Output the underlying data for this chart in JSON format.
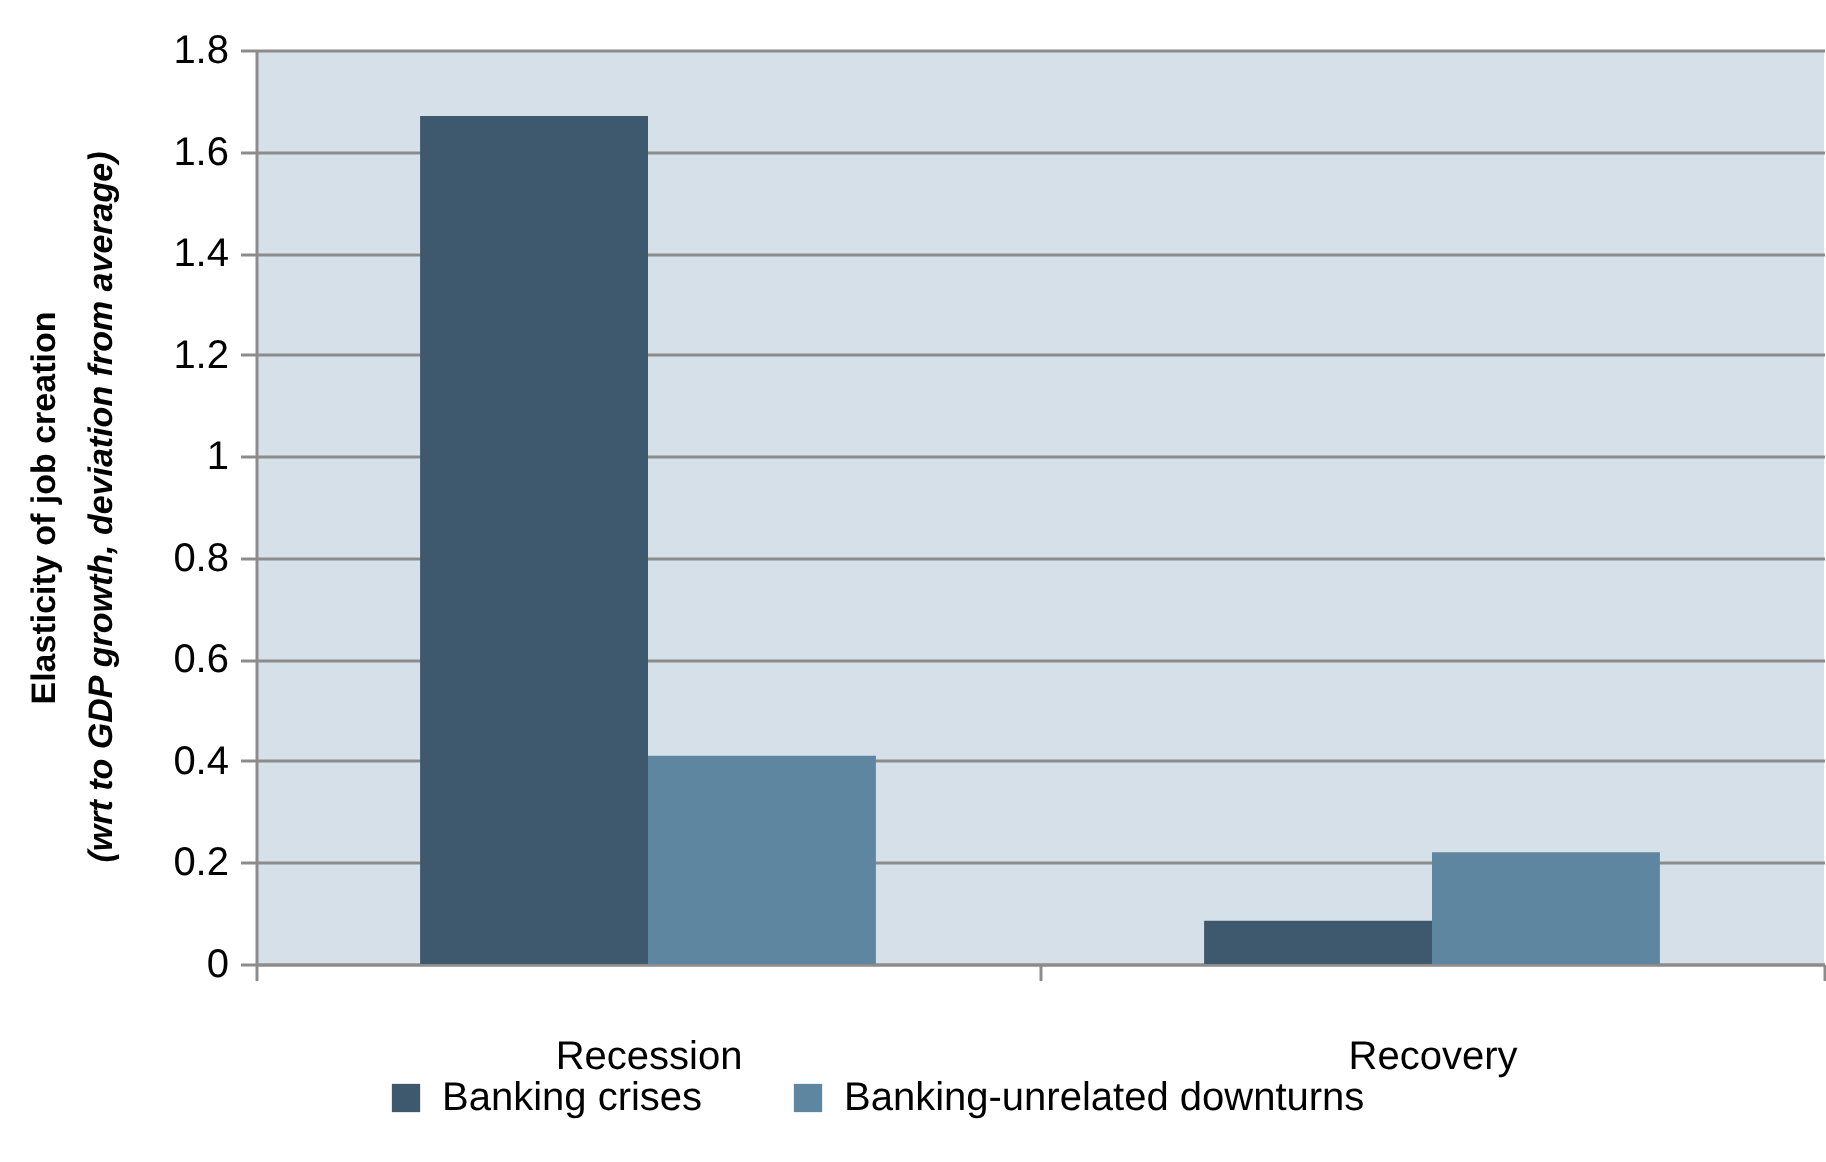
{
  "chart_data": {
    "type": "bar",
    "ylabel": "Elasticity of job creation\n(wrt to GDP growth, deviation from average)",
    "categories": [
      "Recession",
      "Recovery"
    ],
    "series": [
      {
        "name": "Banking crises",
        "color": "#3e596d",
        "values": [
          1.67,
          0.085
        ]
      },
      {
        "name": "Banking-unrelated downturns",
        "color": "#5e86a0",
        "values": [
          0.41,
          0.22
        ]
      }
    ],
    "ylim": [
      0,
      1.8
    ],
    "yticks": [
      0,
      0.2,
      0.4,
      0.6,
      0.8,
      1,
      1.2,
      1.4,
      1.6,
      1.8
    ],
    "grid": "y",
    "legend": "bottom"
  }
}
